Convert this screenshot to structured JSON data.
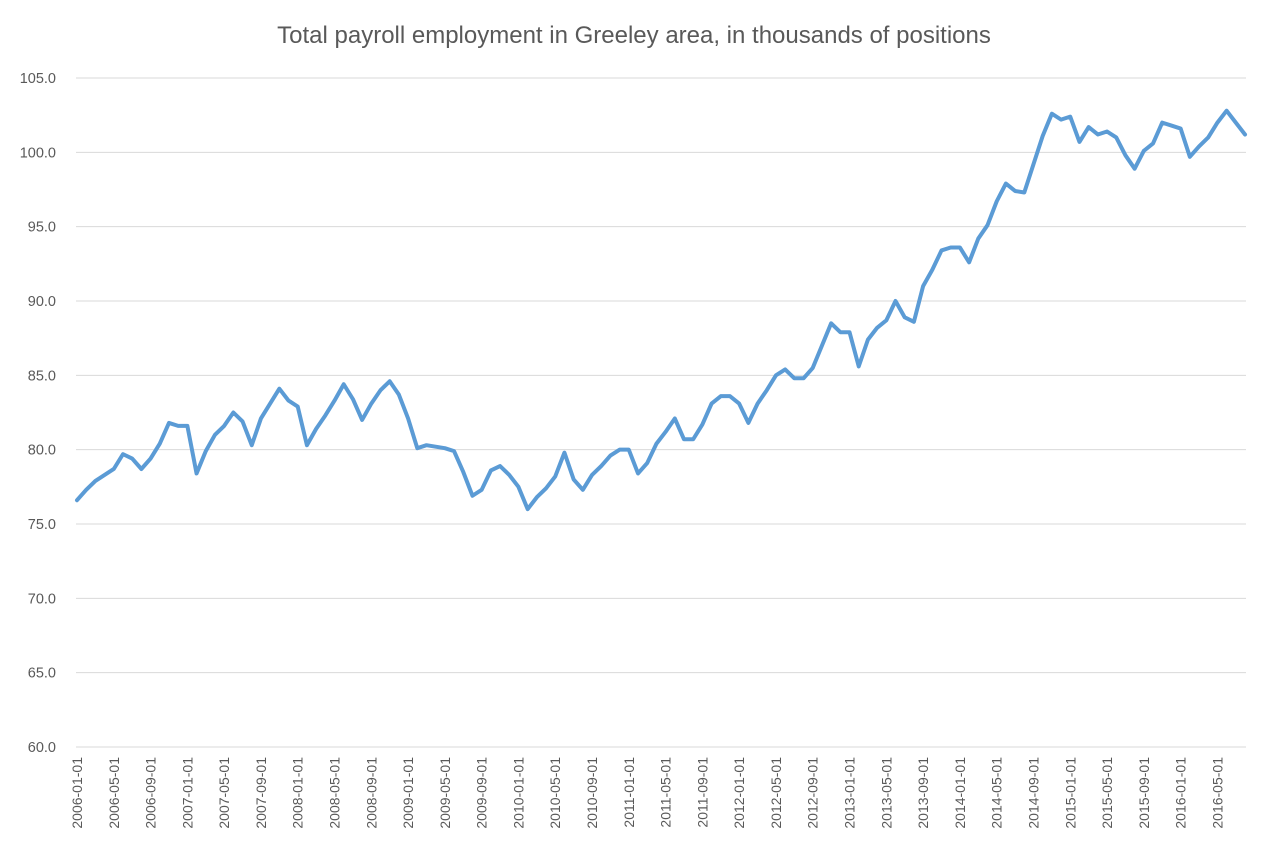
{
  "chart_data": {
    "type": "line",
    "title": "Total payroll employment in Greeley area, in thousands of positions",
    "xlabel": "",
    "ylabel": "",
    "ylim": [
      60,
      105
    ],
    "y_ticks": [
      "60.0",
      "65.0",
      "70.0",
      "75.0",
      "80.0",
      "85.0",
      "90.0",
      "95.0",
      "100.0",
      "105.0"
    ],
    "x_tick_labels": [
      "2006-01-01",
      "2006-05-01",
      "2006-09-01",
      "2007-01-01",
      "2007-05-01",
      "2007-09-01",
      "2008-01-01",
      "2008-05-01",
      "2008-09-01",
      "2009-01-01",
      "2009-05-01",
      "2009-09-01",
      "2010-01-01",
      "2010-05-01",
      "2010-09-01",
      "2011-01-01",
      "2011-05-01",
      "2011-09-01",
      "2012-01-01",
      "2012-05-01",
      "2012-09-01",
      "2013-01-01",
      "2013-05-01",
      "2013-09-01",
      "2014-01-01",
      "2014-05-01",
      "2014-09-01",
      "2015-01-01",
      "2015-05-01",
      "2015-09-01",
      "2016-01-01",
      "2016-05-01"
    ],
    "x_start": "2006-01",
    "x_frequency": "monthly",
    "grid": true,
    "legend": "none",
    "series": [
      {
        "name": "Total payroll employment",
        "color": "#5b9bd5",
        "values": [
          76.6,
          77.3,
          77.9,
          78.3,
          78.7,
          79.7,
          79.4,
          78.7,
          79.4,
          80.4,
          81.8,
          81.6,
          81.6,
          78.4,
          79.9,
          81.0,
          81.6,
          82.5,
          81.9,
          80.3,
          82.1,
          83.1,
          84.1,
          83.3,
          82.9,
          80.3,
          81.4,
          82.3,
          83.3,
          84.4,
          83.4,
          82.0,
          83.1,
          84.0,
          84.6,
          83.7,
          82.1,
          80.1,
          80.3,
          80.2,
          80.1,
          79.9,
          78.5,
          76.9,
          77.3,
          78.6,
          78.9,
          78.3,
          77.5,
          76.0,
          76.8,
          77.4,
          78.2,
          79.8,
          78.0,
          77.3,
          78.3,
          78.9,
          79.6,
          80.0,
          80.0,
          78.4,
          79.1,
          80.4,
          81.2,
          82.1,
          80.7,
          80.7,
          81.7,
          83.1,
          83.6,
          83.6,
          83.1,
          81.8,
          83.1,
          84.0,
          85.0,
          85.4,
          84.8,
          84.8,
          85.5,
          87.0,
          88.5,
          87.9,
          87.9,
          85.6,
          87.4,
          88.2,
          88.7,
          90.0,
          88.9,
          88.6,
          91.0,
          92.1,
          93.4,
          93.6,
          93.6,
          92.6,
          94.2,
          95.1,
          96.7,
          97.9,
          97.4,
          97.3,
          99.2,
          101.1,
          102.6,
          102.2,
          102.4,
          100.7,
          101.7,
          101.2,
          101.4,
          101.0,
          99.8,
          98.9,
          100.1,
          100.6,
          102.0,
          101.8,
          101.6,
          99.7,
          100.4,
          101.0,
          102.0,
          102.8,
          102.0,
          101.2
        ]
      }
    ]
  }
}
